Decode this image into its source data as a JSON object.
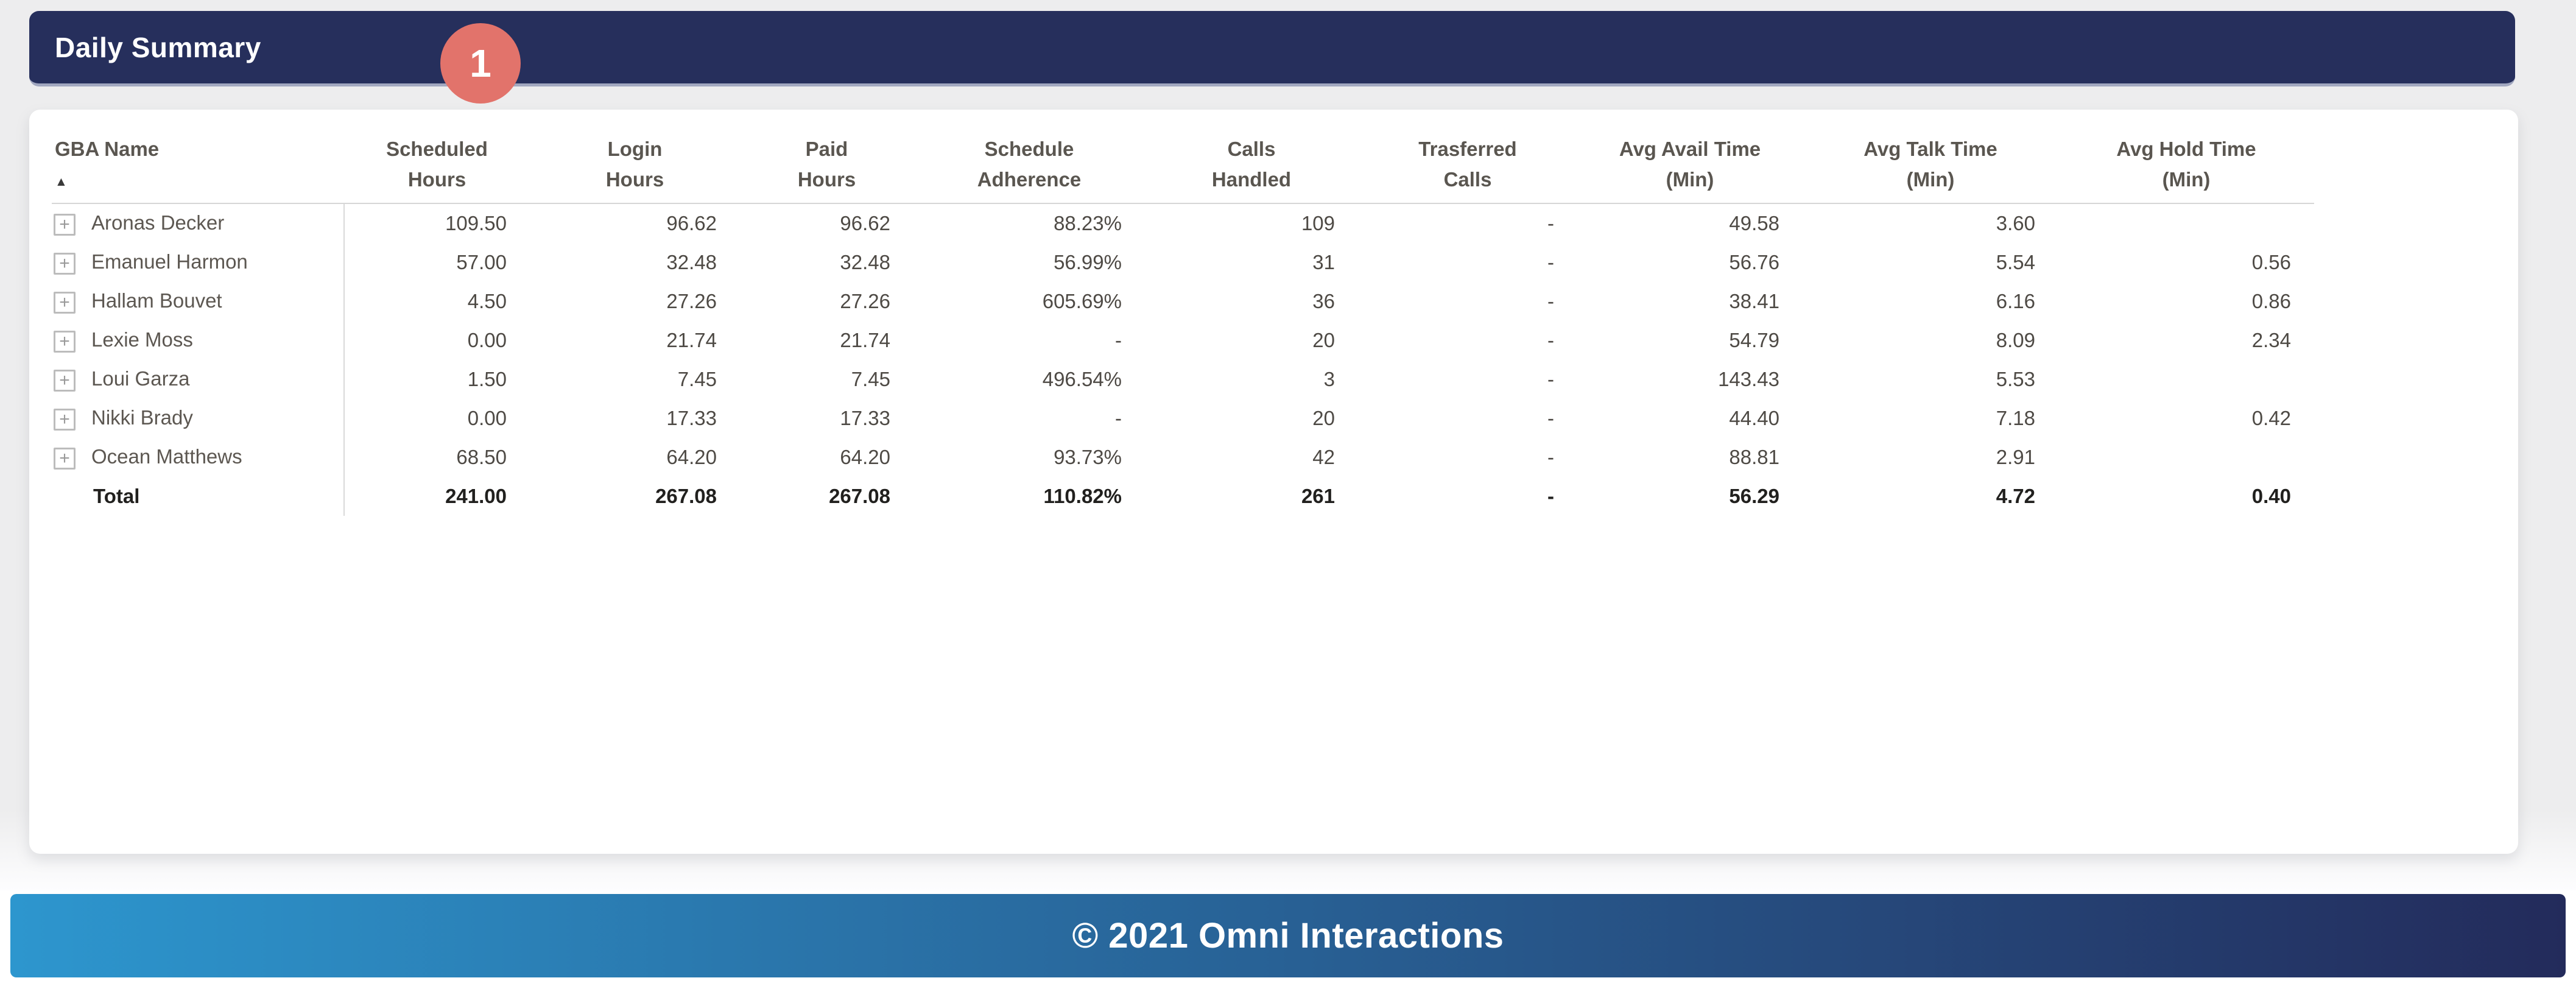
{
  "title_bar": {
    "title": "Daily Summary"
  },
  "badge": {
    "value": "1"
  },
  "table": {
    "sort_icon": "▲",
    "expand_icon": "+",
    "columns": [
      {
        "key": "gba-name",
        "label": "GBA Name"
      },
      {
        "key": "scheduled-hours",
        "label": "Scheduled\nHours"
      },
      {
        "key": "login-hours",
        "label": "Login\nHours"
      },
      {
        "key": "paid-hours",
        "label": "Paid\nHours"
      },
      {
        "key": "schedule-adherence",
        "label": "Schedule\nAdherence"
      },
      {
        "key": "calls-handled",
        "label": "Calls\nHandled"
      },
      {
        "key": "transferred-calls",
        "label": "Trasferred\nCalls"
      },
      {
        "key": "avg-avail-time",
        "label": "Avg Avail Time\n(Min)"
      },
      {
        "key": "avg-talk-time",
        "label": "Avg Talk Time\n(Min)"
      },
      {
        "key": "avg-hold-time",
        "label": "Avg Hold Time\n(Min)"
      }
    ],
    "rows": [
      {
        "name": "Aronas Decker",
        "is_total": false,
        "values": [
          "109.50",
          "96.62",
          "96.62",
          "88.23%",
          "109",
          "-",
          "49.58",
          "3.60",
          ""
        ]
      },
      {
        "name": "Emanuel Harmon",
        "is_total": false,
        "values": [
          "57.00",
          "32.48",
          "32.48",
          "56.99%",
          "31",
          "-",
          "56.76",
          "5.54",
          "0.56"
        ]
      },
      {
        "name": "Hallam Bouvet",
        "is_total": false,
        "values": [
          "4.50",
          "27.26",
          "27.26",
          "605.69%",
          "36",
          "-",
          "38.41",
          "6.16",
          "0.86"
        ]
      },
      {
        "name": "Lexie Moss",
        "is_total": false,
        "values": [
          "0.00",
          "21.74",
          "21.74",
          "-",
          "20",
          "-",
          "54.79",
          "8.09",
          "2.34"
        ]
      },
      {
        "name": "Loui Garza",
        "is_total": false,
        "values": [
          "1.50",
          "7.45",
          "7.45",
          "496.54%",
          "3",
          "-",
          "143.43",
          "5.53",
          ""
        ]
      },
      {
        "name": "Nikki Brady",
        "is_total": false,
        "values": [
          "0.00",
          "17.33",
          "17.33",
          "-",
          "20",
          "-",
          "44.40",
          "7.18",
          "0.42"
        ]
      },
      {
        "name": "Ocean Matthews",
        "is_total": false,
        "values": [
          "68.50",
          "64.20",
          "64.20",
          "93.73%",
          "42",
          "-",
          "88.81",
          "2.91",
          ""
        ]
      },
      {
        "name": "Total",
        "is_total": true,
        "values": [
          "241.00",
          "267.08",
          "267.08",
          "110.82%",
          "261",
          "-",
          "56.29",
          "4.72",
          "0.40"
        ]
      }
    ]
  },
  "footer": {
    "text": "© 2021 Omni Interactions"
  },
  "colors": {
    "title_bar_navy": "#262f5c",
    "badge_coral": "#e2736b",
    "footer_gradient_start": "#2d96ce",
    "footer_gradient_end": "#232b5b",
    "header_text": "#5a5650",
    "body_text": "#4e4a45"
  }
}
